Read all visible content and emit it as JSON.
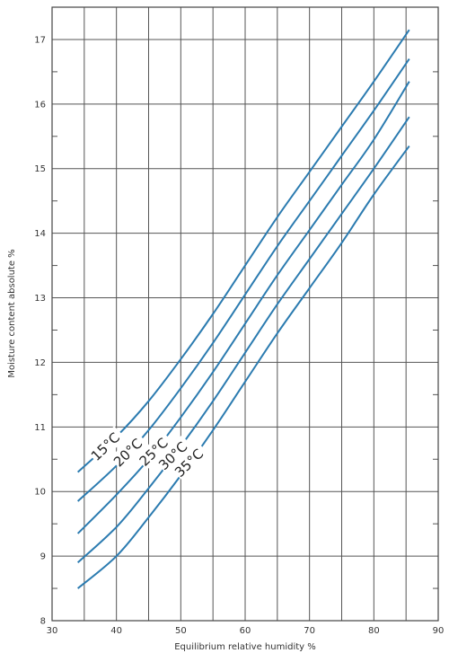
{
  "chart_data": {
    "type": "line",
    "title": "",
    "xlabel": "Equilibrium relative humidity %",
    "ylabel": "Moisture content absolute %",
    "xlim": [
      30,
      90
    ],
    "ylim": [
      8,
      17.5
    ],
    "x_ticks": [
      30,
      40,
      50,
      60,
      70,
      80,
      90
    ],
    "y_ticks": [
      8,
      9,
      10,
      11,
      12,
      13,
      14,
      15,
      16,
      17
    ],
    "grid": true,
    "line_color": "#2b7bb0",
    "series": [
      {
        "name": "15°C",
        "x": [
          34,
          40,
          45,
          50,
          55,
          60,
          65,
          70,
          75,
          80,
          85.5
        ],
        "y": [
          10.3,
          10.85,
          11.4,
          12.05,
          12.75,
          13.5,
          14.25,
          14.95,
          15.65,
          16.35,
          17.15
        ]
      },
      {
        "name": "20°C",
        "x": [
          34,
          40,
          45,
          50,
          55,
          60,
          65,
          70,
          75,
          80,
          85.5
        ],
        "y": [
          9.85,
          10.4,
          10.95,
          11.6,
          12.3,
          13.05,
          13.8,
          14.5,
          15.2,
          15.9,
          16.7
        ]
      },
      {
        "name": "25°C",
        "x": [
          34,
          40,
          45,
          50,
          55,
          60,
          65,
          70,
          75,
          80,
          85.5
        ],
        "y": [
          9.35,
          9.95,
          10.5,
          11.15,
          11.85,
          12.6,
          13.35,
          14.05,
          14.75,
          15.45,
          16.35
        ]
      },
      {
        "name": "30°C",
        "x": [
          34,
          40,
          45,
          50,
          55,
          60,
          65,
          70,
          75,
          80,
          85.5
        ],
        "y": [
          8.9,
          9.45,
          10.05,
          10.7,
          11.4,
          12.15,
          12.9,
          13.6,
          14.3,
          15.0,
          15.8
        ]
      },
      {
        "name": "35°C",
        "x": [
          34,
          40,
          45,
          50,
          55,
          60,
          65,
          70,
          75,
          80,
          85.5
        ],
        "y": [
          8.5,
          9.0,
          9.6,
          10.25,
          10.95,
          11.7,
          12.45,
          13.15,
          13.85,
          14.6,
          15.35
        ]
      }
    ]
  }
}
